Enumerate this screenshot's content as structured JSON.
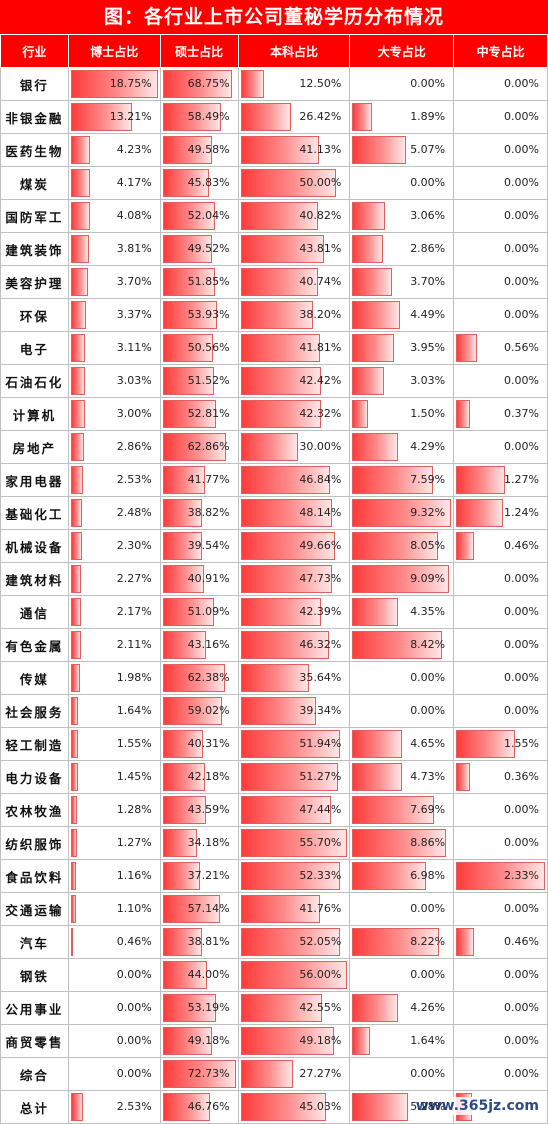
{
  "title": "图：各行业上市公司董秘学历分布情况",
  "watermark": "www.365jz.com",
  "bar_color": "#ff3b3b",
  "header_color": "#ff0000",
  "chart_data": {
    "type": "table",
    "columns": [
      "行业",
      "博士占比",
      "硕士占比",
      "本科占比",
      "大专占比",
      "中专占比"
    ],
    "rows": [
      {
        "name": "银行",
        "values": [
          18.75,
          68.75,
          12.5,
          0.0,
          0.0
        ],
        "labels": [
          "18.75%",
          "68.75%",
          "12.50%",
          "0.00%",
          "0.00%"
        ]
      },
      {
        "name": "非银金融",
        "values": [
          13.21,
          58.49,
          26.42,
          1.89,
          0.0
        ],
        "labels": [
          "13.21%",
          "58.49%",
          "26.42%",
          "1.89%",
          "0.00%"
        ]
      },
      {
        "name": "医药生物",
        "values": [
          4.23,
          49.58,
          41.13,
          5.07,
          0.0
        ],
        "labels": [
          "4.23%",
          "49.58%",
          "41.13%",
          "5.07%",
          "0.00%"
        ]
      },
      {
        "name": "煤炭",
        "values": [
          4.17,
          45.83,
          50.0,
          0.0,
          0.0
        ],
        "labels": [
          "4.17%",
          "45.83%",
          "50.00%",
          "0.00%",
          "0.00%"
        ]
      },
      {
        "name": "国防军工",
        "values": [
          4.08,
          52.04,
          40.82,
          3.06,
          0.0
        ],
        "labels": [
          "4.08%",
          "52.04%",
          "40.82%",
          "3.06%",
          "0.00%"
        ]
      },
      {
        "name": "建筑装饰",
        "values": [
          3.81,
          49.52,
          43.81,
          2.86,
          0.0
        ],
        "labels": [
          "3.81%",
          "49.52%",
          "43.81%",
          "2.86%",
          "0.00%"
        ]
      },
      {
        "name": "美容护理",
        "values": [
          3.7,
          51.85,
          40.74,
          3.7,
          0.0
        ],
        "labels": [
          "3.70%",
          "51.85%",
          "40.74%",
          "3.70%",
          "0.00%"
        ]
      },
      {
        "name": "环保",
        "values": [
          3.37,
          53.93,
          38.2,
          4.49,
          0.0
        ],
        "labels": [
          "3.37%",
          "53.93%",
          "38.20%",
          "4.49%",
          "0.00%"
        ]
      },
      {
        "name": "电子",
        "values": [
          3.11,
          50.56,
          41.81,
          3.95,
          0.56
        ],
        "labels": [
          "3.11%",
          "50.56%",
          "41.81%",
          "3.95%",
          "0.56%"
        ]
      },
      {
        "name": "石油石化",
        "values": [
          3.03,
          51.52,
          42.42,
          3.03,
          0.0
        ],
        "labels": [
          "3.03%",
          "51.52%",
          "42.42%",
          "3.03%",
          "0.00%"
        ]
      },
      {
        "name": "计算机",
        "values": [
          3.0,
          52.81,
          42.32,
          1.5,
          0.37
        ],
        "labels": [
          "3.00%",
          "52.81%",
          "42.32%",
          "1.50%",
          "0.37%"
        ]
      },
      {
        "name": "房地产",
        "values": [
          2.86,
          62.86,
          30.0,
          4.29,
          0.0
        ],
        "labels": [
          "2.86%",
          "62.86%",
          "30.00%",
          "4.29%",
          "0.00%"
        ]
      },
      {
        "name": "家用电器",
        "values": [
          2.53,
          41.77,
          46.84,
          7.59,
          1.27
        ],
        "labels": [
          "2.53%",
          "41.77%",
          "46.84%",
          "7.59%",
          "1.27%"
        ]
      },
      {
        "name": "基础化工",
        "values": [
          2.48,
          38.82,
          48.14,
          9.32,
          1.24
        ],
        "labels": [
          "2.48%",
          "38.82%",
          "48.14%",
          "9.32%",
          "1.24%"
        ]
      },
      {
        "name": "机械设备",
        "values": [
          2.3,
          39.54,
          49.66,
          8.05,
          0.46
        ],
        "labels": [
          "2.30%",
          "39.54%",
          "49.66%",
          "8.05%",
          "0.46%"
        ]
      },
      {
        "name": "建筑材料",
        "values": [
          2.27,
          40.91,
          47.73,
          9.09,
          0.0
        ],
        "labels": [
          "2.27%",
          "40.91%",
          "47.73%",
          "9.09%",
          "0.00%"
        ]
      },
      {
        "name": "通信",
        "values": [
          2.17,
          51.09,
          42.39,
          4.35,
          0.0
        ],
        "labels": [
          "2.17%",
          "51.09%",
          "42.39%",
          "4.35%",
          "0.00%"
        ]
      },
      {
        "name": "有色金属",
        "values": [
          2.11,
          43.16,
          46.32,
          8.42,
          0.0
        ],
        "labels": [
          "2.11%",
          "43.16%",
          "46.32%",
          "8.42%",
          "0.00%"
        ]
      },
      {
        "name": "传媒",
        "values": [
          1.98,
          62.38,
          35.64,
          0.0,
          0.0
        ],
        "labels": [
          "1.98%",
          "62.38%",
          "35.64%",
          "0.00%",
          "0.00%"
        ]
      },
      {
        "name": "社会服务",
        "values": [
          1.64,
          59.02,
          39.34,
          0.0,
          0.0
        ],
        "labels": [
          "1.64%",
          "59.02%",
          "39.34%",
          "0.00%",
          "0.00%"
        ]
      },
      {
        "name": "轻工制造",
        "values": [
          1.55,
          40.31,
          51.94,
          4.65,
          1.55
        ],
        "labels": [
          "1.55%",
          "40.31%",
          "51.94%",
          "4.65%",
          "1.55%"
        ]
      },
      {
        "name": "电力设备",
        "values": [
          1.45,
          42.18,
          51.27,
          4.73,
          0.36
        ],
        "labels": [
          "1.45%",
          "42.18%",
          "51.27%",
          "4.73%",
          "0.36%"
        ]
      },
      {
        "name": "农林牧渔",
        "values": [
          1.28,
          43.59,
          47.44,
          7.69,
          0.0
        ],
        "labels": [
          "1.28%",
          "43.59%",
          "47.44%",
          "7.69%",
          "0.00%"
        ]
      },
      {
        "name": "纺织服饰",
        "values": [
          1.27,
          34.18,
          55.7,
          8.86,
          0.0
        ],
        "labels": [
          "1.27%",
          "34.18%",
          "55.70%",
          "8.86%",
          "0.00%"
        ]
      },
      {
        "name": "食品饮料",
        "values": [
          1.16,
          37.21,
          52.33,
          6.98,
          2.33
        ],
        "labels": [
          "1.16%",
          "37.21%",
          "52.33%",
          "6.98%",
          "2.33%"
        ]
      },
      {
        "name": "交通运输",
        "values": [
          1.1,
          57.14,
          41.76,
          0.0,
          0.0
        ],
        "labels": [
          "1.10%",
          "57.14%",
          "41.76%",
          "0.00%",
          "0.00%"
        ]
      },
      {
        "name": "汽车",
        "values": [
          0.46,
          38.81,
          52.05,
          8.22,
          0.46
        ],
        "labels": [
          "0.46%",
          "38.81%",
          "52.05%",
          "8.22%",
          "0.46%"
        ]
      },
      {
        "name": "钢铁",
        "values": [
          0.0,
          44.0,
          56.0,
          0.0,
          0.0
        ],
        "labels": [
          "0.00%",
          "44.00%",
          "56.00%",
          "0.00%",
          "0.00%"
        ]
      },
      {
        "name": "公用事业",
        "values": [
          0.0,
          53.19,
          42.55,
          4.26,
          0.0
        ],
        "labels": [
          "0.00%",
          "53.19%",
          "42.55%",
          "4.26%",
          "0.00%"
        ]
      },
      {
        "name": "商贸零售",
        "values": [
          0.0,
          49.18,
          49.18,
          1.64,
          0.0
        ],
        "labels": [
          "0.00%",
          "49.18%",
          "49.18%",
          "1.64%",
          "0.00%"
        ]
      },
      {
        "name": "综合",
        "values": [
          0.0,
          72.73,
          27.27,
          0.0,
          0.0
        ],
        "labels": [
          "0.00%",
          "72.73%",
          "27.27%",
          "0.00%",
          "0.00%"
        ]
      },
      {
        "name": "总计",
        "values": [
          2.53,
          46.76,
          45.03,
          5.28,
          0.41
        ],
        "labels": [
          "2.53%",
          "46.76%",
          "45.03%",
          "5.28%",
          ""
        ]
      }
    ]
  }
}
